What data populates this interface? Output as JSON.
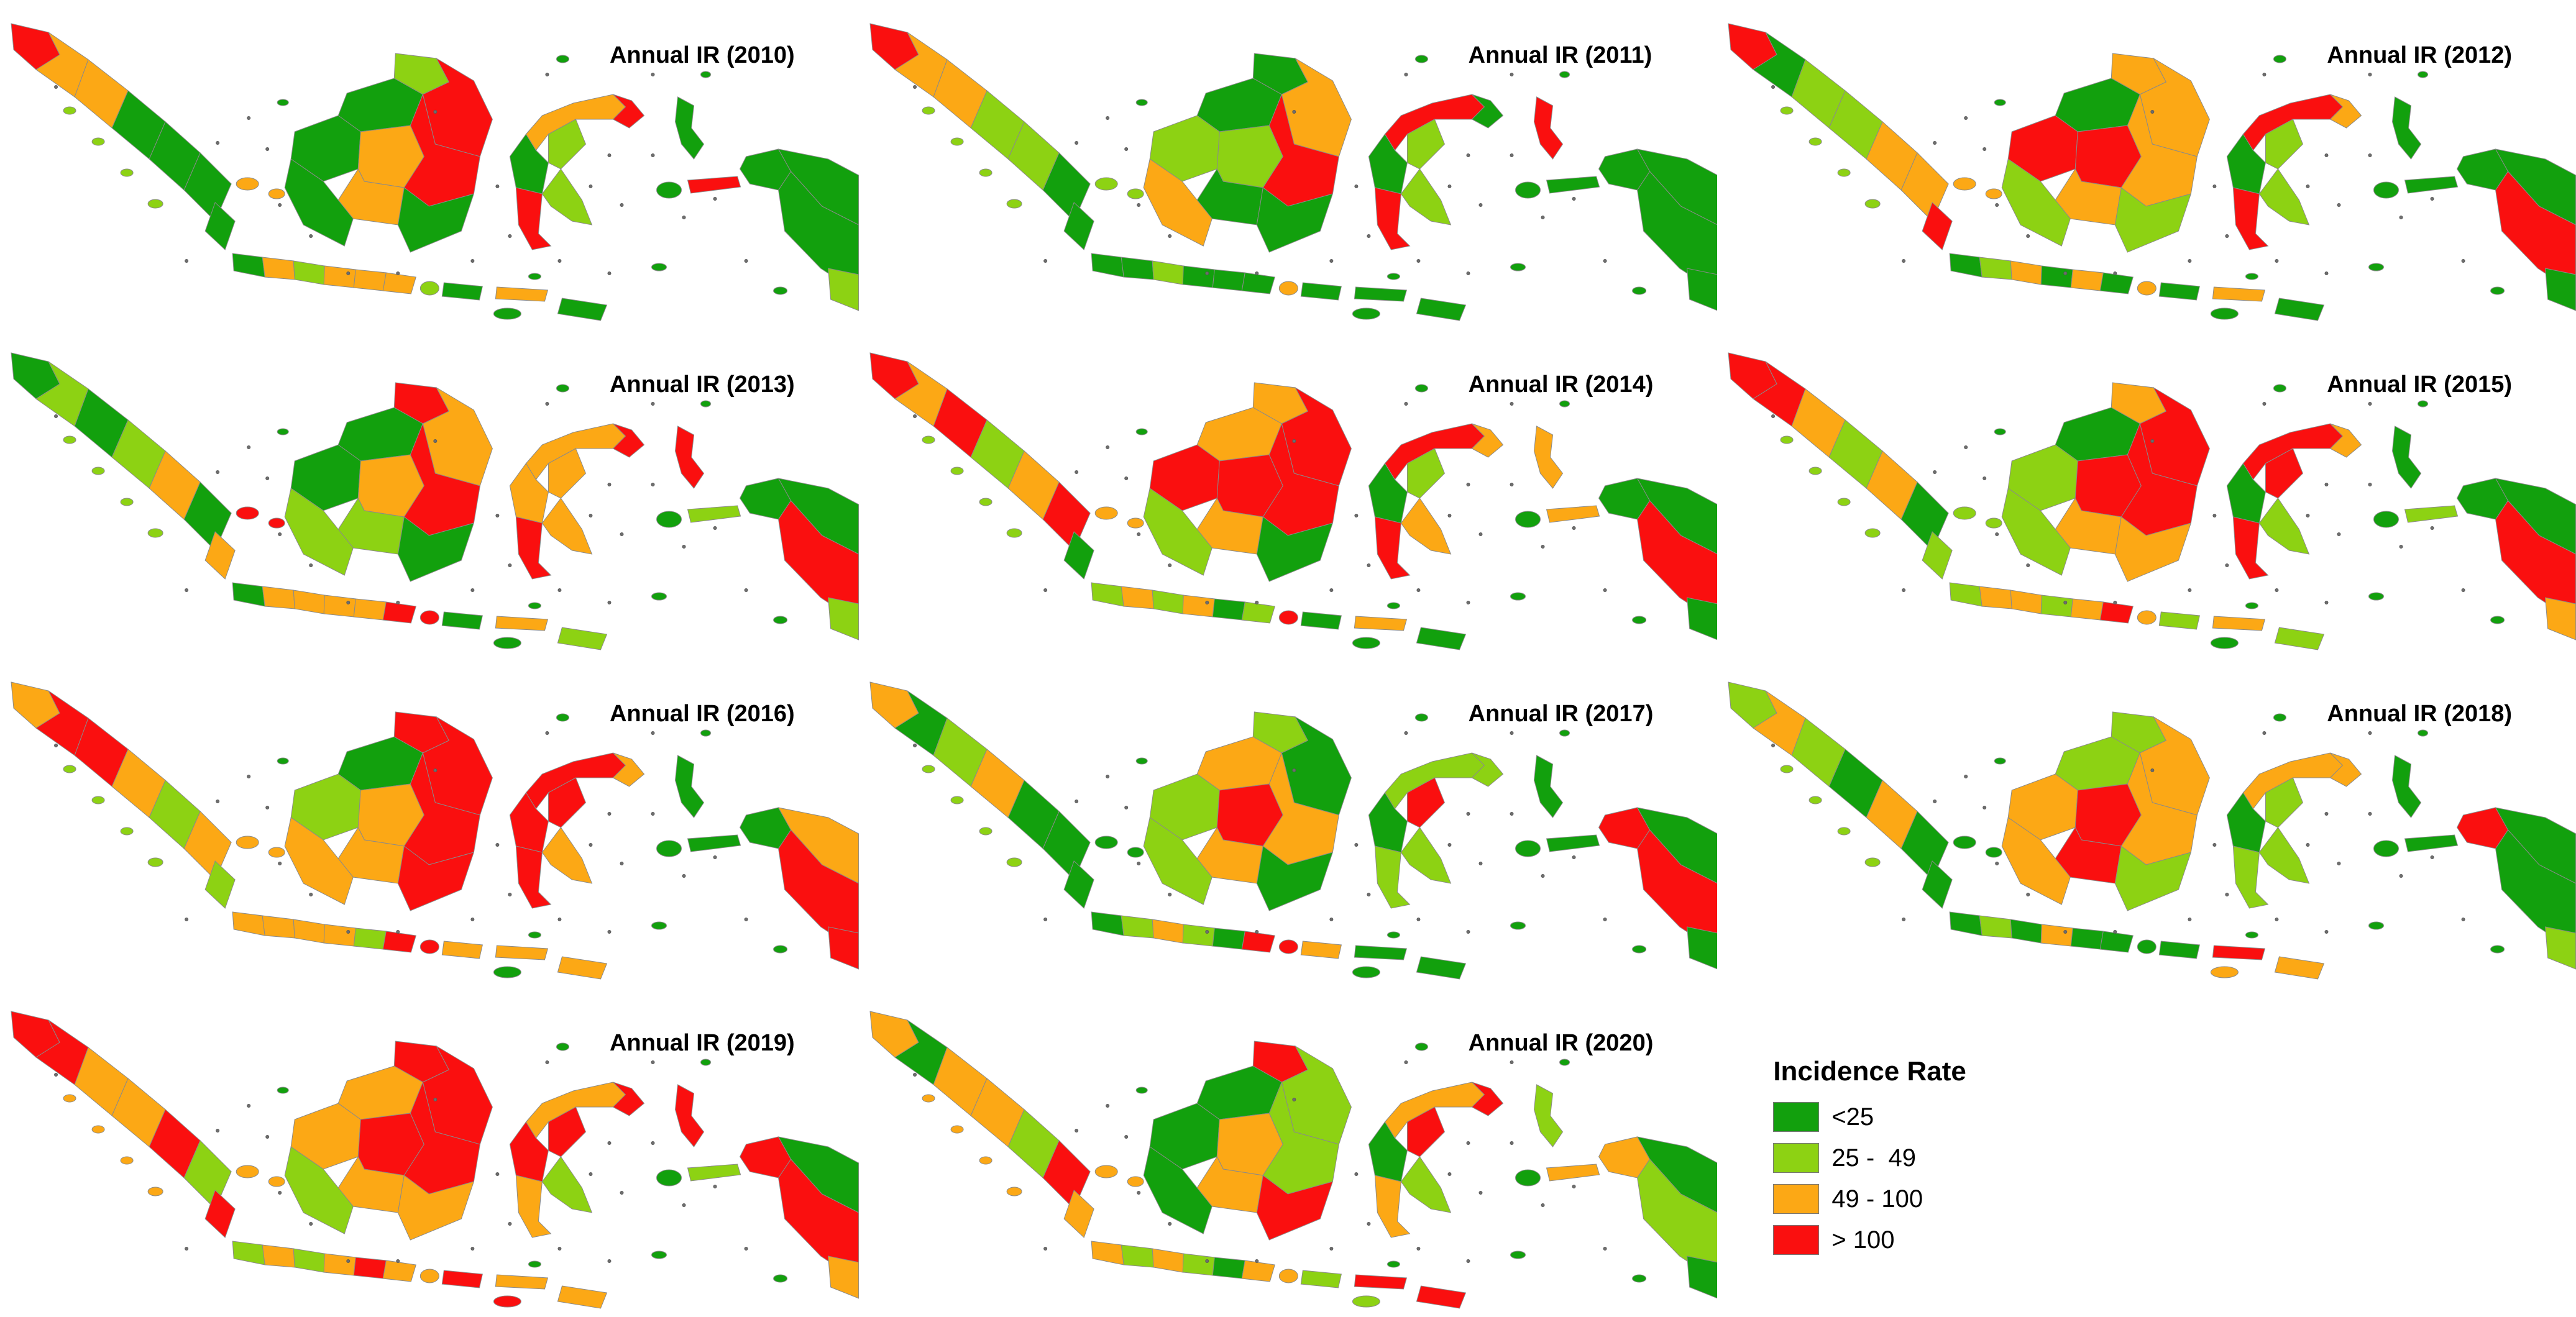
{
  "figure": {
    "description": "Annual incidence rate (IR) choropleth maps of Indonesia, 2010-2020"
  },
  "legend": {
    "title": "Incidence Rate",
    "classes": [
      {
        "label": "<25",
        "color": "#12A00D"
      },
      {
        "label": "25 -  49",
        "color": "#8DD213"
      },
      {
        "label": "49 - 100",
        "color": "#FCA815"
      },
      {
        "label": "> 100",
        "color": "#FA0F0F"
      }
    ]
  },
  "maps": [
    {
      "title": "Annual IR (2010)",
      "region_classes": [
        3,
        2,
        2,
        0,
        0,
        0,
        0,
        1,
        2,
        1,
        3,
        0,
        0,
        2,
        3,
        2,
        0,
        0,
        0,
        2,
        1,
        2,
        2,
        2,
        1,
        0,
        2,
        0,
        0,
        2,
        3,
        0,
        1,
        3,
        1,
        0,
        0,
        3,
        0,
        0,
        0,
        1
      ]
    },
    {
      "title": "Annual IR (2011)",
      "region_classes": [
        3,
        2,
        2,
        1,
        1,
        0,
        0,
        1,
        1,
        0,
        2,
        0,
        1,
        1,
        3,
        0,
        2,
        0,
        0,
        0,
        1,
        0,
        0,
        0,
        2,
        0,
        0,
        0,
        0,
        3,
        0,
        0,
        1,
        3,
        1,
        3,
        0,
        0,
        0,
        0,
        0,
        0
      ]
    },
    {
      "title": "Annual IR (2012)",
      "region_classes": [
        3,
        0,
        1,
        1,
        2,
        2,
        3,
        1,
        2,
        2,
        2,
        0,
        3,
        3,
        2,
        2,
        1,
        1,
        0,
        1,
        2,
        0,
        2,
        0,
        2,
        0,
        2,
        0,
        0,
        3,
        2,
        0,
        1,
        3,
        1,
        0,
        0,
        0,
        0,
        0,
        3,
        0
      ]
    },
    {
      "title": "Annual IR (2013)",
      "region_classes": [
        0,
        1,
        0,
        1,
        2,
        0,
        2,
        1,
        3,
        3,
        2,
        0,
        0,
        2,
        3,
        1,
        1,
        0,
        0,
        2,
        2,
        2,
        2,
        3,
        3,
        0,
        2,
        0,
        1,
        2,
        3,
        2,
        2,
        3,
        2,
        3,
        0,
        1,
        0,
        0,
        3,
        1
      ]
    },
    {
      "title": "Annual IR (2014)",
      "region_classes": [
        3,
        2,
        3,
        1,
        2,
        3,
        0,
        1,
        2,
        2,
        3,
        2,
        3,
        3,
        3,
        2,
        1,
        0,
        1,
        2,
        1,
        2,
        0,
        1,
        3,
        0,
        2,
        0,
        0,
        3,
        2,
        0,
        1,
        3,
        2,
        2,
        0,
        2,
        0,
        0,
        3,
        0
      ]
    },
    {
      "title": "Annual IR (2015)",
      "region_classes": [
        3,
        3,
        2,
        1,
        2,
        0,
        1,
        1,
        1,
        2,
        3,
        0,
        1,
        3,
        3,
        2,
        1,
        2,
        1,
        2,
        2,
        1,
        2,
        3,
        2,
        1,
        2,
        0,
        1,
        3,
        2,
        0,
        3,
        3,
        1,
        0,
        0,
        1,
        0,
        0,
        3,
        2
      ]
    },
    {
      "title": "Annual IR (2016)",
      "region_classes": [
        2,
        3,
        3,
        2,
        1,
        2,
        1,
        1,
        2,
        3,
        3,
        0,
        1,
        2,
        3,
        2,
        2,
        3,
        2,
        2,
        2,
        2,
        1,
        3,
        3,
        2,
        2,
        0,
        2,
        3,
        2,
        3,
        3,
        3,
        2,
        0,
        0,
        0,
        0,
        2,
        3,
        3
      ]
    },
    {
      "title": "Annual IR (2017)",
      "region_classes": [
        2,
        0,
        1,
        2,
        0,
        0,
        0,
        1,
        0,
        1,
        0,
        2,
        1,
        3,
        2,
        2,
        1,
        0,
        0,
        1,
        2,
        1,
        0,
        3,
        3,
        2,
        0,
        0,
        0,
        1,
        1,
        0,
        3,
        1,
        1,
        0,
        0,
        0,
        3,
        0,
        3,
        0
      ]
    },
    {
      "title": "Annual IR (2018)",
      "region_classes": [
        1,
        2,
        1,
        0,
        2,
        0,
        0,
        1,
        0,
        1,
        2,
        1,
        2,
        3,
        2,
        3,
        2,
        1,
        0,
        1,
        0,
        2,
        0,
        0,
        0,
        0,
        3,
        2,
        2,
        2,
        2,
        0,
        1,
        1,
        1,
        0,
        0,
        0,
        3,
        0,
        0,
        1
      ]
    },
    {
      "title": "Annual IR (2019)",
      "region_classes": [
        3,
        3,
        2,
        2,
        3,
        1,
        3,
        2,
        2,
        3,
        3,
        2,
        2,
        3,
        3,
        2,
        1,
        2,
        1,
        2,
        1,
        2,
        3,
        2,
        2,
        3,
        2,
        3,
        2,
        2,
        3,
        3,
        3,
        2,
        1,
        3,
        0,
        1,
        3,
        0,
        3,
        2
      ]
    },
    {
      "title": "Annual IR (2020)",
      "region_classes": [
        2,
        0,
        2,
        2,
        1,
        3,
        2,
        2,
        2,
        3,
        1,
        0,
        0,
        2,
        1,
        2,
        0,
        3,
        2,
        1,
        2,
        1,
        0,
        2,
        2,
        1,
        3,
        1,
        3,
        2,
        3,
        0,
        3,
        2,
        1,
        1,
        0,
        2,
        2,
        0,
        1,
        0
      ]
    }
  ]
}
